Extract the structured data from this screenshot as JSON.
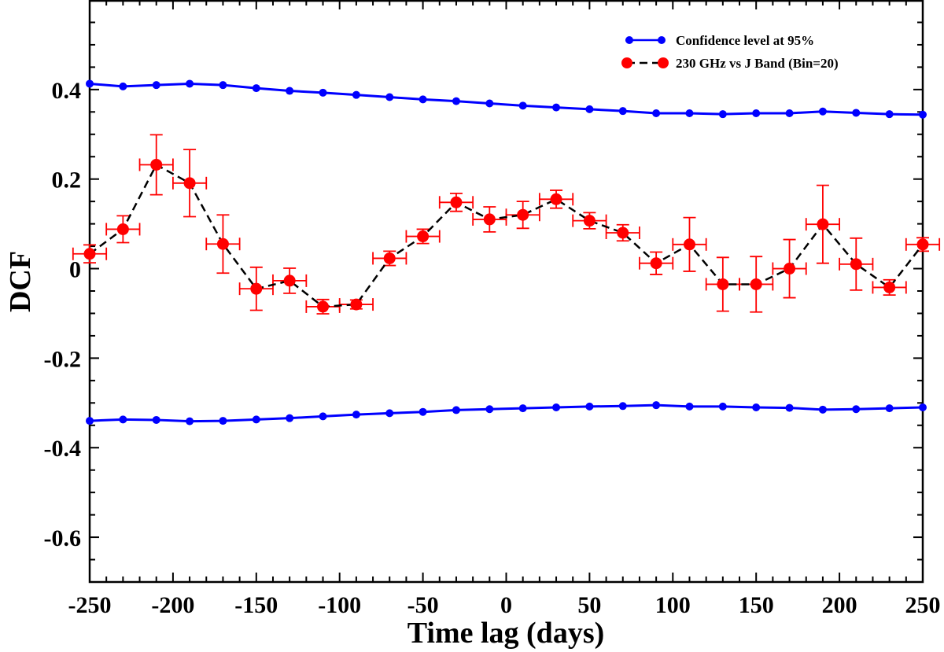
{
  "chart_data": {
    "type": "scatter",
    "title": "",
    "xlabel": "Time lag (days)",
    "ylabel": "DCF",
    "xlim": [
      -250,
      250
    ],
    "ylim": [
      -0.7,
      0.6
    ],
    "x_ticks": [
      -250,
      -200,
      -150,
      -100,
      -50,
      0,
      50,
      100,
      150,
      200,
      250
    ],
    "x_tick_labels": [
      "-250",
      "-200",
      "-150",
      "-100",
      "-50",
      "0",
      "50",
      "100",
      "150",
      "200",
      "250"
    ],
    "y_ticks": [
      -0.6,
      -0.4,
      -0.2,
      0,
      0.2,
      0.4
    ],
    "y_tick_labels": [
      "-0.6",
      "-0.4",
      "-0.2",
      "0",
      "0.2",
      "0.4"
    ],
    "grid": false,
    "legend_position": "top-right",
    "x": [
      -250,
      -230,
      -210,
      -190,
      -170,
      -150,
      -130,
      -110,
      -90,
      -70,
      -50,
      -30,
      -10,
      10,
      30,
      50,
      70,
      90,
      110,
      130,
      150,
      170,
      190,
      210,
      230,
      250
    ],
    "series": [
      {
        "name": "Confidence level at 95%",
        "style": "solid-line-markers",
        "color": "#0000ff",
        "values": [
          0.413,
          0.407,
          0.41,
          0.413,
          0.41,
          0.403,
          0.397,
          0.393,
          0.388,
          0.383,
          0.378,
          0.374,
          0.369,
          0.364,
          0.36,
          0.356,
          0.352,
          0.347,
          0.347,
          0.345,
          0.347,
          0.347,
          0.351,
          0.348,
          0.345,
          0.344
        ]
      },
      {
        "name": "",
        "style": "solid-line-markers",
        "color": "#0000ff",
        "values": [
          -0.34,
          -0.337,
          -0.338,
          -0.341,
          -0.34,
          -0.337,
          -0.334,
          -0.33,
          -0.326,
          -0.323,
          -0.32,
          -0.316,
          -0.314,
          -0.312,
          -0.31,
          -0.308,
          -0.307,
          -0.305,
          -0.308,
          -0.308,
          -0.31,
          -0.311,
          -0.315,
          -0.314,
          -0.312,
          -0.31
        ]
      },
      {
        "name": "230 GHz vs J Band (Bin=20)",
        "style": "dashed-line-markers-errorbars",
        "color": "#ff0000",
        "line_color": "#000000",
        "values": [
          0.033,
          0.088,
          0.232,
          0.191,
          0.055,
          -0.045,
          -0.027,
          -0.085,
          -0.08,
          0.023,
          0.072,
          0.148,
          0.11,
          0.12,
          0.155,
          0.107,
          0.08,
          0.012,
          0.054,
          -0.035,
          -0.035,
          0.0,
          0.099,
          0.01,
          -0.042,
          0.054
        ],
        "y_errors": [
          0.02,
          0.03,
          0.067,
          0.075,
          0.065,
          0.048,
          0.028,
          0.016,
          0.01,
          0.016,
          0.016,
          0.02,
          0.028,
          0.03,
          0.02,
          0.018,
          0.018,
          0.025,
          0.06,
          0.06,
          0.062,
          0.065,
          0.087,
          0.058,
          0.017,
          0.015
        ],
        "x_half_width": 10
      }
    ]
  }
}
